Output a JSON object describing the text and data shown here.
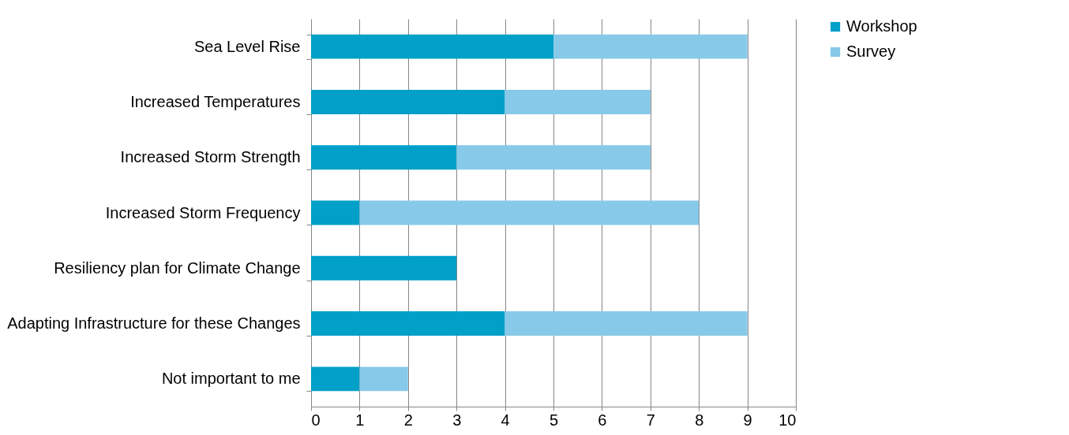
{
  "chart_data": {
    "type": "bar",
    "orientation": "horizontal",
    "stacked": true,
    "categories": [
      "Sea Level Rise",
      "Increased Temperatures",
      "Increased Storm Strength",
      "Increased Storm Frequency",
      "Resiliency plan for Climate Change",
      "Adapting Infrastructure for these Changes",
      "Not important to me"
    ],
    "series": [
      {
        "name": "Workshop",
        "color": "#00a0c8",
        "values": [
          5,
          4,
          3,
          1,
          3,
          4,
          1
        ]
      },
      {
        "name": "Survey",
        "color": "#87c9e9",
        "values": [
          4,
          3,
          4,
          7,
          0,
          5,
          1
        ]
      }
    ],
    "xlim": [
      0,
      10
    ],
    "xticks": [
      0,
      1,
      2,
      3,
      4,
      5,
      6,
      7,
      8,
      9,
      10
    ],
    "grid": "x",
    "legend": "right"
  }
}
